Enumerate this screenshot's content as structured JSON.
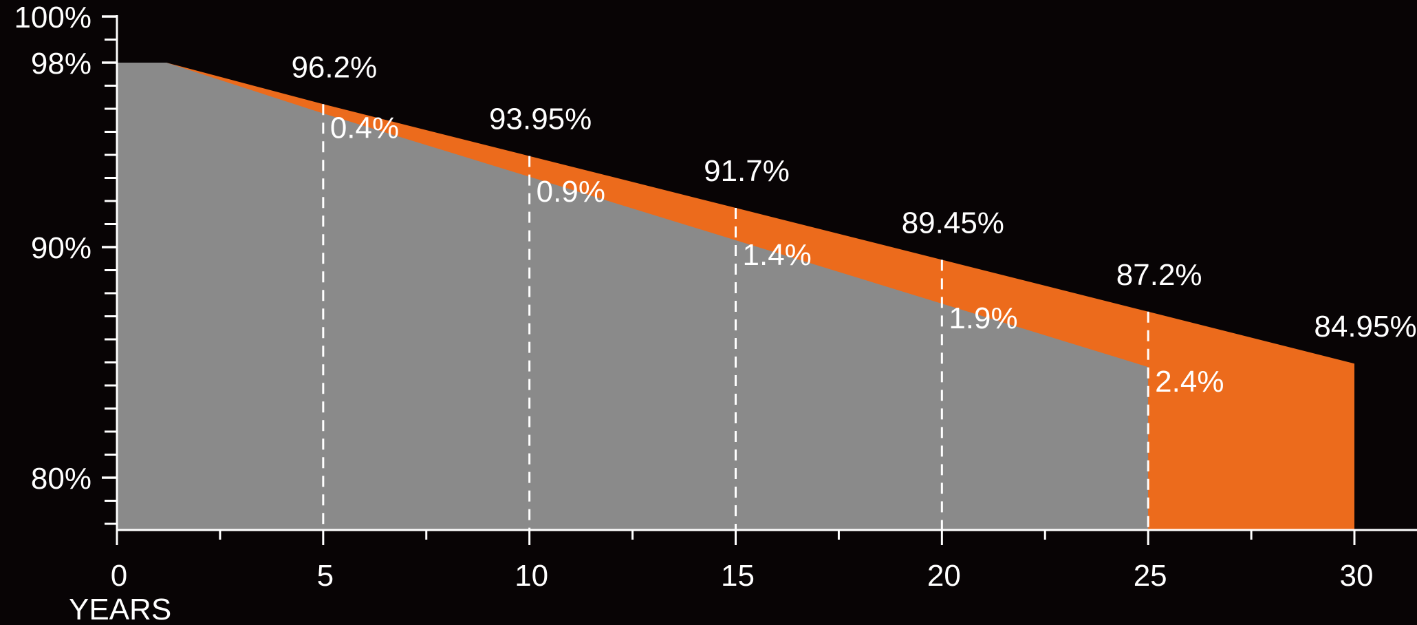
{
  "colors": {
    "background": "#080405",
    "gray_area": "#8a8a8a",
    "orange_area": "#ec6b1c",
    "axis": "#ffffff",
    "text": "#ffffff"
  },
  "chart_data": {
    "type": "area",
    "xlabel": "YEARS",
    "ylabel": "",
    "xlim": [
      0,
      30
    ],
    "ylim": [
      77.7,
      100
    ],
    "x_ticks": [
      0,
      5,
      10,
      15,
      20,
      25,
      30
    ],
    "x_tick_labels": [
      "0",
      "5",
      "10",
      "15",
      "20",
      "25",
      "30"
    ],
    "y_ticks": [
      80,
      90,
      98,
      100
    ],
    "y_tick_labels": [
      "80%",
      "90%",
      "98%",
      "100%"
    ],
    "grid": false,
    "series": [
      {
        "points": [
          [
            0,
            98
          ],
          [
            1.2,
            98
          ],
          [
            5,
            95.8
          ],
          [
            10,
            93.05
          ],
          [
            15,
            90.3
          ],
          [
            20,
            87.55
          ],
          [
            25,
            84.8
          ]
        ]
      },
      {
        "points": [
          [
            0,
            98
          ],
          [
            1.2,
            98
          ],
          [
            5,
            96.2
          ],
          [
            10,
            93.95
          ],
          [
            15,
            91.7
          ],
          [
            20,
            89.45
          ],
          [
            25,
            87.2
          ],
          [
            30,
            84.95
          ]
        ]
      }
    ],
    "upper_labels": [
      {
        "x": 5,
        "text": "96.2%"
      },
      {
        "x": 10,
        "text": "93.95%"
      },
      {
        "x": 15,
        "text": "91.7%"
      },
      {
        "x": 20,
        "text": "89.45%"
      },
      {
        "x": 25,
        "text": "87.2%"
      },
      {
        "x": 30,
        "text": "84.95%"
      }
    ],
    "gap_labels": [
      {
        "x": 5,
        "text": "0.4%"
      },
      {
        "x": 10,
        "text": "0.9%"
      },
      {
        "x": 15,
        "text": "1.4%"
      },
      {
        "x": 20,
        "text": "1.9%"
      },
      {
        "x": 25,
        "text": "2.4%"
      }
    ]
  }
}
